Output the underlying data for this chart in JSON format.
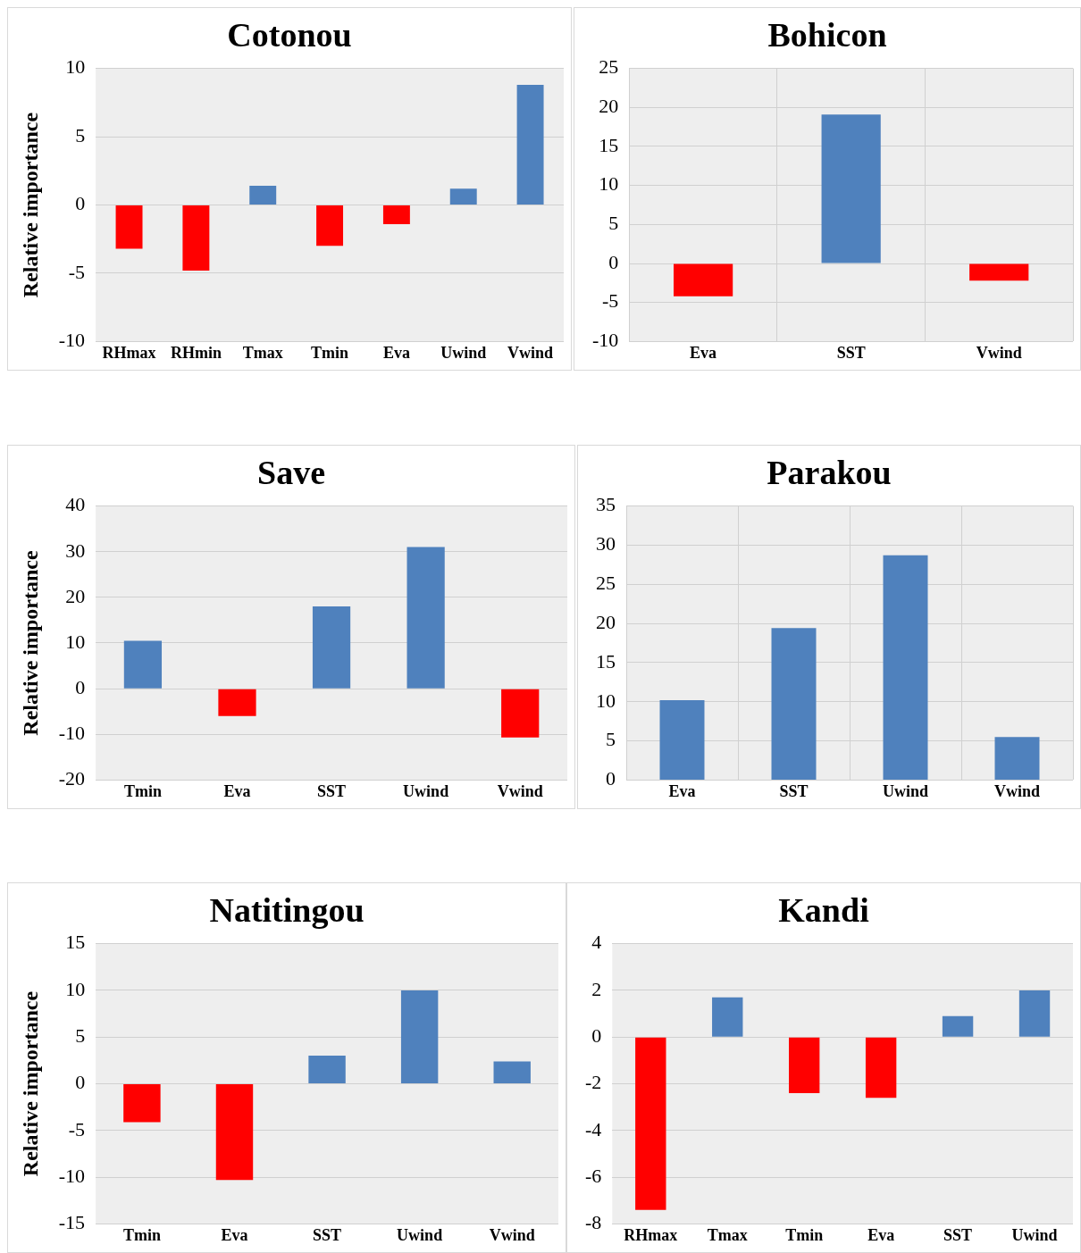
{
  "chart_data": [
    {
      "type": "bar",
      "title": "Cotonou",
      "ylabel": "Relative importance",
      "categories": [
        "RHmax",
        "RHmin",
        "Tmax",
        "Tmin",
        "Eva",
        "Uwind",
        "Vwind"
      ],
      "values": [
        -3.2,
        -4.8,
        1.4,
        -3.0,
        -1.4,
        1.2,
        8.8
      ],
      "colors": [
        "#ff0000",
        "#ff0000",
        "#4f81bd",
        "#ff0000",
        "#ff0000",
        "#4f81bd",
        "#4f81bd"
      ],
      "ylim": [
        -10,
        10
      ],
      "yticks": [
        -10,
        -5,
        0,
        5,
        10
      ],
      "grid": "y",
      "legend": false
    },
    {
      "type": "bar",
      "title": "Bohicon",
      "categories": [
        "Eva",
        "SST",
        "Vwind"
      ],
      "values": [
        -4.2,
        19.1,
        -2.2
      ],
      "colors": [
        "#ff0000",
        "#4f81bd",
        "#ff0000"
      ],
      "ylim": [
        -10,
        25
      ],
      "yticks": [
        -10,
        -5,
        0,
        5,
        10,
        15,
        20,
        25
      ],
      "grid": true,
      "legend": false
    },
    {
      "type": "bar",
      "title": "Save",
      "ylabel": "Relative importance",
      "categories": [
        "Tmin",
        "Eva",
        "SST",
        "Uwind",
        "Vwind"
      ],
      "values": [
        10.5,
        -6.0,
        18,
        31,
        -10.7
      ],
      "colors": [
        "#4f81bd",
        "#ff0000",
        "#4f81bd",
        "#4f81bd",
        "#ff0000"
      ],
      "ylim": [
        -20,
        40
      ],
      "yticks": [
        -20,
        -10,
        0,
        10,
        20,
        30,
        40
      ],
      "grid": "y",
      "legend": false
    },
    {
      "type": "bar",
      "title": "Parakou",
      "categories": [
        "Eva",
        "SST",
        "Uwind",
        "Vwind"
      ],
      "values": [
        10.2,
        19.4,
        28.7,
        5.5
      ],
      "colors": [
        "#4f81bd",
        "#4f81bd",
        "#4f81bd",
        "#4f81bd"
      ],
      "ylim": [
        0,
        35
      ],
      "yticks": [
        0,
        5,
        10,
        15,
        20,
        25,
        30,
        35
      ],
      "grid": true,
      "legend": false
    },
    {
      "type": "bar",
      "title": "Natitingou",
      "ylabel": "Relative importance",
      "categories": [
        "Tmin",
        "Eva",
        "SST",
        "Uwind",
        "Vwind"
      ],
      "values": [
        -4.1,
        -10.3,
        3.0,
        10.0,
        2.4
      ],
      "colors": [
        "#ff0000",
        "#ff0000",
        "#4f81bd",
        "#4f81bd",
        "#4f81bd"
      ],
      "ylim": [
        -15,
        15
      ],
      "yticks": [
        -15,
        -10,
        -5,
        0,
        5,
        10,
        15
      ],
      "grid": "y",
      "legend": false
    },
    {
      "type": "bar",
      "title": "Kandi",
      "categories": [
        "RHmax",
        "Tmax",
        "Tmin",
        "Eva",
        "SST",
        "Uwind"
      ],
      "values": [
        -7.4,
        1.7,
        -2.4,
        -2.6,
        0.9,
        2.0
      ],
      "colors": [
        "#ff0000",
        "#4f81bd",
        "#ff0000",
        "#ff0000",
        "#4f81bd",
        "#4f81bd"
      ],
      "ylim": [
        -8,
        4
      ],
      "yticks": [
        -8,
        -6,
        -4,
        -2,
        0,
        2,
        4
      ],
      "grid": "y",
      "legend": false
    }
  ]
}
